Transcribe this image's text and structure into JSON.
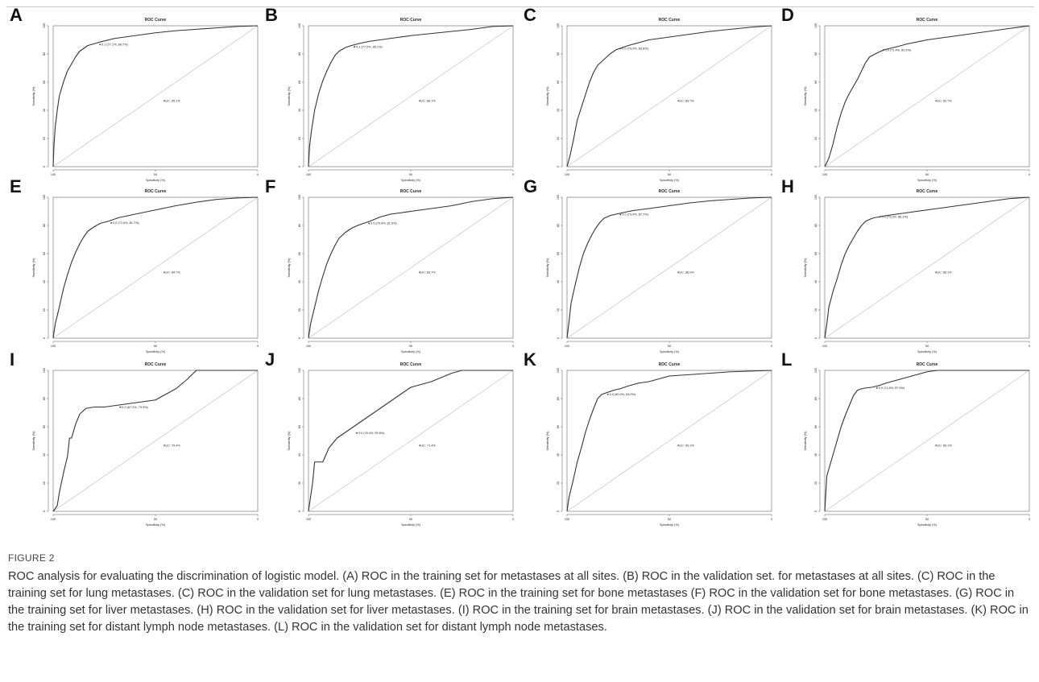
{
  "figure": {
    "label": "FIGURE 2",
    "caption": "ROC analysis for evaluating the discrimination of logistic model. (A) ROC in the training set for metastases at all sites. (B) ROC in the validation set. for metastases at all sites. (C) ROC in the training set for lung metastases. (C) ROC in the validation set for lung metastases. (E) ROC in the training set for bone metastases (F) ROC in the validation set for bone metastases. (G) ROC in the training set for liver metastases. (H) ROC in the validation set for liver metastases. (I) ROC in the training set for brain metastases. (J) ROC in the validation set for brain metastases. (K) ROC in the training set for distant lymph node metastases. (L) ROC in the validation set for distant lymph node metastases."
  },
  "chart_data": [
    {
      "panel": "A",
      "type": "line",
      "title": "ROC Curve",
      "xlabel": "Specificity (%)",
      "ylabel": "Sensitivity (%)",
      "xlim": [
        100,
        0
      ],
      "ylim": [
        0,
        100
      ],
      "x_ticks": [
        "100",
        "50",
        "0"
      ],
      "y_ticks": [
        "0",
        "20",
        "40",
        "60",
        "80",
        "100"
      ],
      "threshold_label": "0.1 (77.1%, 86.7%)",
      "auc_label": "AUC: 90.1%",
      "series": [
        {
          "x": [
            100,
            99.6,
            99,
            98,
            97,
            95,
            93,
            91,
            89,
            87,
            85,
            83,
            80.5,
            77,
            70,
            60,
            50,
            40,
            30,
            20,
            10,
            0
          ],
          "y": [
            0,
            15,
            28,
            40,
            50,
            60,
            68,
            73,
            78,
            82,
            84,
            86,
            87,
            88.5,
            91,
            93,
            95,
            96.5,
            97.5,
            98.5,
            99.5,
            100
          ]
        }
      ]
    },
    {
      "panel": "B",
      "type": "line",
      "title": "ROC Curve",
      "xlabel": "Specificity (%)",
      "ylabel": "Sensitivity (%)",
      "xlim": [
        100,
        0
      ],
      "ylim": [
        0,
        100
      ],
      "x_ticks": [
        "100",
        "50",
        "0"
      ],
      "y_ticks": [
        "0",
        "20",
        "40",
        "60",
        "80",
        "100"
      ],
      "threshold_label": "0.1 (77.5%, 85.1%)",
      "auc_label": "AUC: 88.1%",
      "series": [
        {
          "x": [
            100,
            99.5,
            98.5,
            97,
            95,
            93,
            91,
            89,
            87,
            85,
            82,
            79,
            75,
            70,
            60,
            50,
            40,
            30,
            20,
            10,
            0
          ],
          "y": [
            0,
            14,
            26,
            40,
            52,
            61,
            68,
            74,
            79,
            82,
            84.5,
            86,
            87.5,
            89,
            91,
            93,
            94.5,
            96,
            97.5,
            99.5,
            100
          ]
        }
      ]
    },
    {
      "panel": "C",
      "type": "line",
      "title": "ROC Curve",
      "xlabel": "Specificity (%)",
      "ylabel": "Sensitivity (%)",
      "xlim": [
        100,
        0
      ],
      "ylim": [
        0,
        100
      ],
      "x_ticks": [
        "100",
        "50",
        "0"
      ],
      "y_ticks": [
        "0",
        "20",
        "40",
        "60",
        "80",
        "100"
      ],
      "threshold_label": "0.0 (73.9%, 83.8%)",
      "auc_label": "AUC: 83.7%",
      "series": [
        {
          "x": [
            100,
            98.5,
            97,
            95,
            93,
            91,
            89,
            87,
            85,
            82,
            79,
            76,
            74,
            70,
            65,
            60,
            50,
            40,
            30,
            20,
            10,
            0
          ],
          "y": [
            0,
            8,
            18,
            33,
            42,
            51,
            60,
            67,
            72,
            76,
            80,
            83,
            84,
            86,
            88,
            90,
            92,
            94,
            96,
            97.5,
            99,
            100
          ]
        }
      ]
    },
    {
      "panel": "D",
      "type": "line",
      "title": "ROC Curve",
      "xlabel": "Specificity (%)",
      "ylabel": "Sensitivity (%)",
      "xlim": [
        100,
        0
      ],
      "ylim": [
        0,
        100
      ],
      "x_ticks": [
        "100",
        "50",
        "0"
      ],
      "y_ticks": [
        "0",
        "20",
        "40",
        "60",
        "80",
        "100"
      ],
      "threshold_label": "0.0 (71.4%, 82.6%)",
      "auc_label": "AUC: 82.7%",
      "series": [
        {
          "x": [
            100,
            98,
            96,
            94,
            92,
            90,
            88,
            86,
            84,
            82,
            80,
            78,
            74,
            71,
            65,
            60,
            50,
            40,
            30,
            20,
            10,
            0
          ],
          "y": [
            0,
            6,
            16,
            28,
            38,
            46,
            52,
            57,
            62,
            68,
            74,
            78,
            81,
            83,
            85,
            87,
            90,
            92,
            94,
            96,
            98,
            100
          ]
        }
      ]
    },
    {
      "panel": "E",
      "type": "line",
      "title": "ROC Curve",
      "xlabel": "Specificity (%)",
      "ylabel": "Sensitivity (%)",
      "xlim": [
        100,
        0
      ],
      "ylim": [
        0,
        100
      ],
      "x_ticks": [
        "100",
        "50",
        "0"
      ],
      "y_ticks": [
        "0",
        "20",
        "40",
        "60",
        "80",
        "100"
      ],
      "threshold_label": "0.0 (71.6%, 81.7%)",
      "auc_label": "AUC: 84.7%",
      "series": [
        {
          "x": [
            100,
            99,
            97,
            95,
            93,
            91,
            89,
            87,
            85,
            83,
            80,
            77,
            73,
            68,
            60,
            50,
            40,
            30,
            20,
            10,
            0
          ],
          "y": [
            0,
            10,
            22,
            35,
            45,
            54,
            61,
            67,
            72,
            76,
            79,
            81.5,
            83,
            85.5,
            88,
            91,
            94,
            96.5,
            98.5,
            99.5,
            100
          ]
        }
      ]
    },
    {
      "panel": "F",
      "type": "line",
      "title": "ROC Curve",
      "xlabel": "Specificity (%)",
      "ylabel": "Sensitivity (%)",
      "xlim": [
        100,
        0
      ],
      "ylim": [
        0,
        100
      ],
      "x_ticks": [
        "100",
        "50",
        "0"
      ],
      "y_ticks": [
        "0",
        "20",
        "40",
        "60",
        "80",
        "100"
      ],
      "threshold_label": "0.0 (70.4%, 81.5%)",
      "auc_label": "AUC: 83.7%",
      "series": [
        {
          "x": [
            100,
            99,
            97,
            95,
            93,
            91,
            89,
            87,
            85,
            82,
            79,
            76,
            73,
            70,
            65,
            60,
            50,
            40,
            30,
            20,
            10,
            0
          ],
          "y": [
            0,
            10,
            22,
            34,
            44,
            53,
            60,
            66,
            71,
            75,
            78,
            80,
            81.5,
            83,
            86,
            88,
            90,
            92,
            94,
            97,
            99,
            100
          ]
        }
      ]
    },
    {
      "panel": "G",
      "type": "line",
      "title": "ROC Curve",
      "xlabel": "Specificity (%)",
      "ylabel": "Sensitivity (%)",
      "xlim": [
        100,
        0
      ],
      "ylim": [
        0,
        100
      ],
      "x_ticks": [
        "100",
        "50",
        "0"
      ],
      "y_ticks": [
        "0",
        "20",
        "40",
        "60",
        "80",
        "100"
      ],
      "threshold_label": "0.0 (73.9%, 87.7%)",
      "auc_label": "AUC: 88.0%",
      "series": [
        {
          "x": [
            100,
            99,
            98,
            96,
            94,
            92,
            90,
            88,
            86,
            84,
            82,
            79,
            76,
            73,
            68,
            60,
            50,
            40,
            30,
            20,
            10,
            0
          ],
          "y": [
            0,
            12,
            25,
            38,
            50,
            60,
            67,
            73,
            78,
            82,
            85,
            87,
            88,
            89,
            90.5,
            92,
            94,
            96,
            97.5,
            98.5,
            99.5,
            100
          ]
        }
      ]
    },
    {
      "panel": "H",
      "type": "line",
      "title": "ROC Curve",
      "xlabel": "Specificity (%)",
      "ylabel": "Sensitivity (%)",
      "xlim": [
        100,
        0
      ],
      "ylim": [
        0,
        100
      ],
      "x_ticks": [
        "100",
        "50",
        "0"
      ],
      "y_ticks": [
        "0",
        "20",
        "40",
        "60",
        "80",
        "100"
      ],
      "threshold_label": "0.0 (73.0%, 86.1%)",
      "auc_label": "AUC: 85.1%",
      "series": [
        {
          "x": [
            100,
            99,
            98,
            96,
            94,
            92,
            90,
            88,
            86,
            84,
            82,
            80,
            77,
            74,
            70,
            65,
            60,
            50,
            40,
            30,
            20,
            10,
            0
          ],
          "y": [
            0,
            10,
            22,
            33,
            42,
            52,
            60,
            66,
            71,
            76,
            80,
            83,
            85,
            86,
            87,
            88,
            89,
            91,
            93,
            95,
            97,
            99,
            100
          ]
        }
      ]
    },
    {
      "panel": "I",
      "type": "line",
      "title": "ROC Curve",
      "xlabel": "Specificity (%)",
      "ylabel": "Sensitivity (%)",
      "xlim": [
        100,
        0
      ],
      "ylim": [
        0,
        100
      ],
      "x_ticks": [
        "100",
        "50",
        "0"
      ],
      "y_ticks": [
        "0",
        "20",
        "40",
        "60",
        "80",
        "100"
      ],
      "threshold_label": "0.0 (67.2%, 73.9%)",
      "auc_label": "AUC: 79.4%",
      "series": [
        {
          "x": [
            100,
            99,
            98,
            97,
            96,
            94.5,
            93,
            92,
            91,
            89,
            87,
            84,
            80,
            75,
            70,
            65,
            60,
            55,
            50,
            40,
            35,
            30,
            25,
            20,
            15,
            10,
            5,
            0
          ],
          "y": [
            0,
            2,
            4,
            13,
            20,
            30,
            39,
            52,
            52,
            62,
            69,
            73,
            74,
            74,
            75,
            76,
            77,
            78,
            79,
            87,
            93,
            100,
            100,
            100,
            100,
            100,
            100,
            100
          ]
        }
      ]
    },
    {
      "panel": "J",
      "type": "line",
      "title": "ROC Curve",
      "xlabel": "Specificity (%)",
      "ylabel": "Sensitivity (%)",
      "xlim": [
        100,
        0
      ],
      "ylim": [
        0,
        100
      ],
      "x_ticks": [
        "100",
        "50",
        "0"
      ],
      "y_ticks": [
        "0",
        "20",
        "40",
        "60",
        "80",
        "100"
      ],
      "threshold_label": "0.0 (76.4%, 55.6%)",
      "auc_label": "AUC: 71.4%",
      "series": [
        {
          "x": [
            100,
            99,
            98,
            97,
            95,
            93,
            90,
            86,
            80,
            75,
            70,
            65,
            60,
            50,
            40,
            35,
            30,
            25,
            20,
            15,
            10,
            5,
            0
          ],
          "y": [
            0,
            10,
            20,
            35,
            35,
            35,
            45,
            52,
            58,
            63,
            68,
            73,
            78,
            88,
            92,
            95,
            98,
            100,
            100,
            100,
            100,
            100,
            100
          ]
        }
      ]
    },
    {
      "panel": "K",
      "type": "line",
      "title": "ROC Curve",
      "xlabel": "Specificity (%)",
      "ylabel": "Sensitivity (%)",
      "xlim": [
        100,
        0
      ],
      "ylim": [
        0,
        100
      ],
      "x_ticks": [
        "100",
        "50",
        "0"
      ],
      "y_ticks": [
        "0",
        "20",
        "40",
        "60",
        "80",
        "100"
      ],
      "threshold_label": "0.0 (80.0%, 83.0%)",
      "auc_label": "AUC: 90.1%",
      "series": [
        {
          "x": [
            100,
            99,
            97,
            95,
            93,
            91,
            89,
            87,
            85,
            83,
            81,
            79,
            77,
            74,
            70,
            65,
            60,
            55,
            50,
            40,
            30,
            20,
            10,
            0
          ],
          "y": [
            0,
            10,
            22,
            35,
            45,
            56,
            65,
            73,
            80,
            83,
            84,
            85,
            86,
            87,
            89,
            91,
            92,
            94,
            96,
            97,
            98,
            99,
            99.5,
            100
          ]
        }
      ]
    },
    {
      "panel": "L",
      "type": "line",
      "title": "ROC Curve",
      "xlabel": "Specificity (%)",
      "ylabel": "Sensitivity (%)",
      "xlim": [
        100,
        0
      ],
      "ylim": [
        0,
        100
      ],
      "x_ticks": [
        "100",
        "50",
        "0"
      ],
      "y_ticks": [
        "0",
        "20",
        "40",
        "60",
        "80",
        "100"
      ],
      "threshold_label": "0.0 (74.5%, 87.5%)",
      "auc_label": "AUC: 89.1%",
      "series": [
        {
          "x": [
            100,
            99,
            98,
            96,
            94,
            92,
            90,
            88,
            86,
            84,
            82,
            80,
            77,
            74,
            70,
            65,
            60,
            55,
            50,
            45,
            40,
            30,
            20,
            10,
            0
          ],
          "y": [
            0,
            25,
            30,
            40,
            50,
            60,
            68,
            75,
            82,
            86,
            87,
            87.5,
            88,
            89,
            91,
            93,
            95,
            97,
            99,
            100,
            100,
            100,
            100,
            100,
            100
          ]
        }
      ]
    }
  ]
}
